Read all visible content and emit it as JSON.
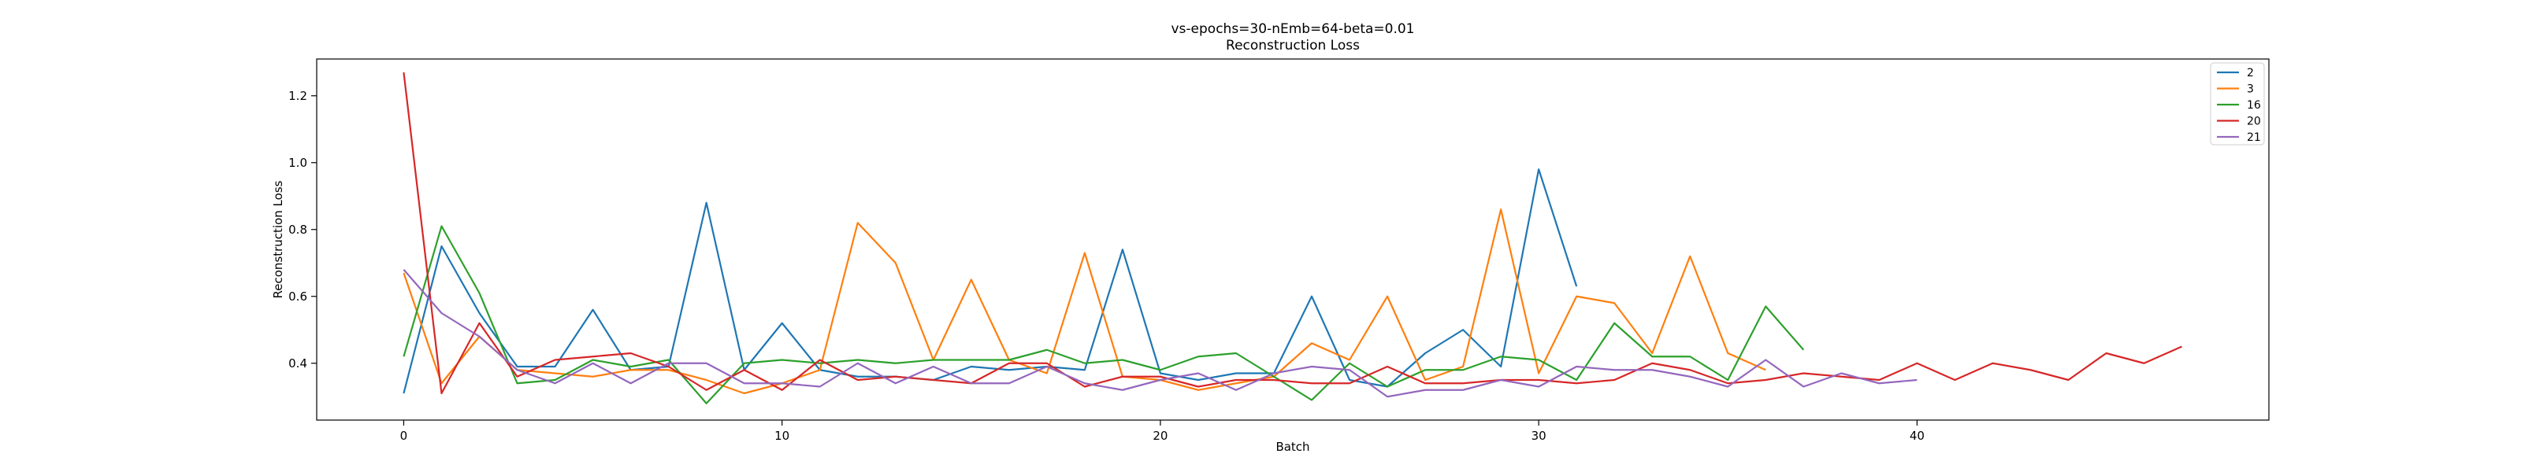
{
  "chart_data": {
    "type": "line",
    "title": "vs-epochs=30-nEmb=64-beta=0.01",
    "subtitle": "Reconstruction Loss",
    "xlabel": "Batch",
    "ylabel": "Reconstruction Loss",
    "xlim": [
      -2.3,
      49.3
    ],
    "ylim": [
      0.23,
      1.31
    ],
    "xticks": [
      0,
      10,
      20,
      30,
      40
    ],
    "yticks": [
      0.4,
      0.6,
      0.8,
      1.0,
      1.2
    ],
    "grid": false,
    "legend_position": "top-right",
    "series": [
      {
        "name": "2",
        "color": "#1f77b4",
        "x": [
          0,
          1,
          2,
          3,
          4,
          5,
          6,
          7,
          8,
          9,
          10,
          11,
          12,
          13,
          14,
          15,
          16,
          17,
          18,
          19,
          20,
          21,
          22,
          23,
          24,
          25,
          26,
          27,
          28,
          29,
          30,
          31
        ],
        "y": [
          0.31,
          0.75,
          0.55,
          0.39,
          0.39,
          0.56,
          0.38,
          0.39,
          0.88,
          0.38,
          0.52,
          0.38,
          0.36,
          0.36,
          0.35,
          0.39,
          0.38,
          0.39,
          0.38,
          0.74,
          0.37,
          0.35,
          0.37,
          0.37,
          0.6,
          0.35,
          0.33,
          0.43,
          0.5,
          0.39,
          0.98,
          0.63
        ]
      },
      {
        "name": "3",
        "color": "#ff7f0e",
        "x": [
          0,
          1,
          2,
          3,
          4,
          5,
          6,
          7,
          8,
          9,
          10,
          11,
          12,
          13,
          14,
          15,
          16,
          17,
          18,
          19,
          20,
          21,
          22,
          23,
          24,
          25,
          26,
          27,
          28,
          29,
          30,
          31,
          32,
          33,
          34,
          35,
          36
        ],
        "y": [
          0.67,
          0.34,
          0.48,
          0.38,
          0.37,
          0.36,
          0.38,
          0.38,
          0.35,
          0.31,
          0.34,
          0.38,
          0.82,
          0.7,
          0.41,
          0.65,
          0.41,
          0.37,
          0.73,
          0.36,
          0.35,
          0.32,
          0.34,
          0.36,
          0.46,
          0.41,
          0.6,
          0.35,
          0.39,
          0.86,
          0.37,
          0.6,
          0.58,
          0.43,
          0.72,
          0.43,
          0.38
        ]
      },
      {
        "name": "16",
        "color": "#2ca02c",
        "x": [
          0,
          1,
          2,
          3,
          4,
          5,
          6,
          7,
          8,
          9,
          10,
          11,
          12,
          13,
          14,
          15,
          16,
          17,
          18,
          19,
          20,
          21,
          22,
          23,
          24,
          25,
          26,
          27,
          28,
          29,
          30,
          31,
          32,
          33,
          34,
          35,
          36,
          37
        ],
        "y": [
          0.42,
          0.81,
          0.61,
          0.34,
          0.35,
          0.41,
          0.39,
          0.41,
          0.28,
          0.4,
          0.41,
          0.4,
          0.41,
          0.4,
          0.41,
          0.41,
          0.41,
          0.44,
          0.4,
          0.41,
          0.38,
          0.42,
          0.43,
          0.36,
          0.29,
          0.4,
          0.33,
          0.38,
          0.38,
          0.42,
          0.41,
          0.35,
          0.52,
          0.42,
          0.42,
          0.35,
          0.57,
          0.44
        ]
      },
      {
        "name": "20",
        "color": "#d62728",
        "x": [
          0,
          1,
          2,
          3,
          4,
          5,
          6,
          7,
          8,
          9,
          10,
          11,
          12,
          13,
          14,
          15,
          16,
          17,
          18,
          19,
          20,
          21,
          22,
          23,
          24,
          25,
          26,
          27,
          28,
          29,
          30,
          31,
          32,
          33,
          34,
          35,
          36,
          37,
          38,
          39,
          40,
          41,
          42,
          43,
          44,
          45,
          46,
          47
        ],
        "y": [
          1.27,
          0.31,
          0.52,
          0.36,
          0.41,
          0.42,
          0.43,
          0.39,
          0.32,
          0.38,
          0.32,
          0.41,
          0.35,
          0.36,
          0.35,
          0.34,
          0.4,
          0.4,
          0.33,
          0.36,
          0.36,
          0.33,
          0.35,
          0.35,
          0.34,
          0.34,
          0.39,
          0.34,
          0.34,
          0.35,
          0.35,
          0.34,
          0.35,
          0.4,
          0.38,
          0.34,
          0.35,
          0.37,
          0.36,
          0.35,
          0.4,
          0.35,
          0.4,
          0.38,
          0.35,
          0.43,
          0.4,
          0.45
        ]
      },
      {
        "name": "21",
        "color": "#9467bd",
        "x": [
          0,
          1,
          2,
          3,
          4,
          5,
          6,
          7,
          8,
          9,
          10,
          11,
          12,
          13,
          14,
          15,
          16,
          17,
          18,
          19,
          20,
          21,
          22,
          23,
          24,
          25,
          26,
          27,
          28,
          29,
          30,
          31,
          32,
          33,
          34,
          35,
          36,
          37,
          38,
          39,
          40
        ],
        "y": [
          0.68,
          0.55,
          0.48,
          0.38,
          0.34,
          0.4,
          0.34,
          0.4,
          0.4,
          0.34,
          0.34,
          0.33,
          0.4,
          0.34,
          0.39,
          0.34,
          0.34,
          0.39,
          0.34,
          0.32,
          0.35,
          0.37,
          0.32,
          0.37,
          0.39,
          0.38,
          0.3,
          0.32,
          0.32,
          0.35,
          0.33,
          0.39,
          0.38,
          0.38,
          0.36,
          0.33,
          0.41,
          0.33,
          0.37,
          0.34,
          0.35
        ]
      }
    ]
  }
}
